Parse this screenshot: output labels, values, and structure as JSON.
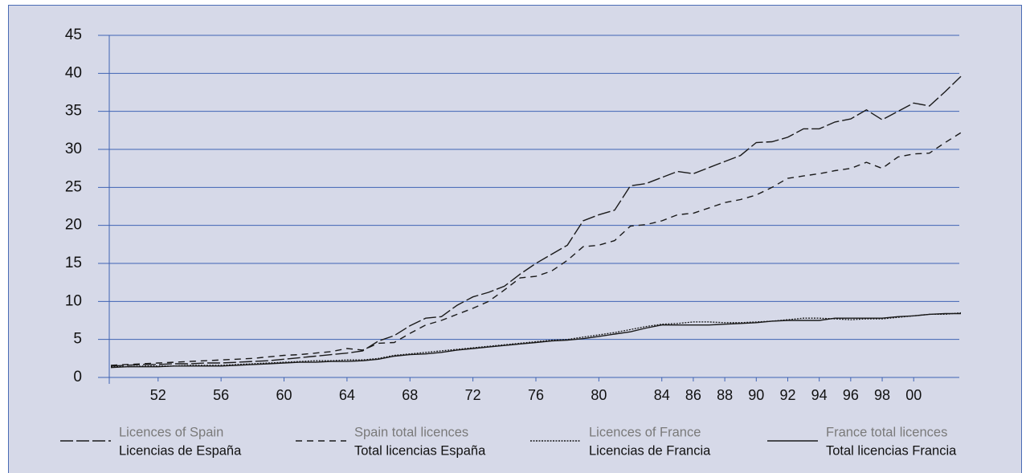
{
  "chart_data": {
    "type": "line",
    "x": [
      1949,
      1950,
      1951,
      1952,
      1953,
      1954,
      1955,
      1956,
      1957,
      1958,
      1959,
      1960,
      1961,
      1962,
      1963,
      1964,
      1965,
      1966,
      1967,
      1968,
      1969,
      1970,
      1971,
      1972,
      1973,
      1974,
      1975,
      1976,
      1977,
      1978,
      1979,
      1980,
      1981,
      1982,
      1983,
      1984,
      1985,
      1986,
      1987,
      1988,
      1989,
      1990,
      1991,
      1992,
      1993,
      1994,
      1995,
      1996,
      1997,
      1998,
      1999,
      2000,
      2001,
      2002,
      2003
    ],
    "xlim": [
      1949,
      2003
    ],
    "xticks": [
      {
        "value": 1952,
        "label": "52"
      },
      {
        "value": 1956,
        "label": "56"
      },
      {
        "value": 1960,
        "label": "60"
      },
      {
        "value": 1964,
        "label": "64"
      },
      {
        "value": 1968,
        "label": "68"
      },
      {
        "value": 1972,
        "label": "72"
      },
      {
        "value": 1976,
        "label": "76"
      },
      {
        "value": 1980,
        "label": "80"
      },
      {
        "value": 1984,
        "label": "84"
      },
      {
        "value": 1986,
        "label": "86"
      },
      {
        "value": 1988,
        "label": "88"
      },
      {
        "value": 1990,
        "label": "90"
      },
      {
        "value": 1992,
        "label": "92"
      },
      {
        "value": 1994,
        "label": "94"
      },
      {
        "value": 1996,
        "label": "96"
      },
      {
        "value": 1998,
        "label": "98"
      },
      {
        "value": 2000,
        "label": "00"
      }
    ],
    "ylim": [
      0,
      45
    ],
    "yticks": [
      0,
      5,
      10,
      15,
      20,
      25,
      30,
      35,
      40,
      45
    ],
    "grid": true,
    "series": [
      {
        "name": "Licences of Spain",
        "name_es": "Licencias de España",
        "color": "#1a1a1a",
        "dash": "long",
        "values": [
          1.5,
          1.6,
          1.7,
          1.7,
          1.8,
          1.8,
          1.9,
          1.9,
          2.0,
          2.1,
          2.2,
          2.4,
          2.6,
          2.8,
          3.0,
          3.2,
          3.5,
          4.8,
          5.5,
          6.8,
          7.8,
          8.0,
          9.5,
          10.6,
          11.2,
          12.0,
          13.6,
          15.0,
          16.2,
          17.4,
          20.6,
          21.4,
          22.0,
          25.2,
          25.5,
          26.3,
          27.1,
          26.8,
          27.6,
          28.4,
          29.2,
          30.9,
          31.0,
          31.6,
          32.7,
          32.7,
          33.6,
          34.0,
          35.2,
          33.9,
          35.0,
          36.1,
          35.7,
          37.6,
          39.6
        ]
      },
      {
        "name": "Spain total licences",
        "name_es": "Total licencias España",
        "color": "#1a1a1a",
        "dash": "short",
        "values": [
          1.6,
          1.7,
          1.8,
          1.9,
          2.0,
          2.1,
          2.2,
          2.3,
          2.4,
          2.5,
          2.7,
          2.9,
          3.0,
          3.2,
          3.4,
          3.8,
          3.6,
          4.5,
          4.6,
          5.8,
          6.9,
          7.5,
          8.3,
          9.1,
          10.0,
          11.5,
          13.1,
          13.3,
          14.0,
          15.4,
          17.2,
          17.4,
          18.0,
          19.9,
          20.1,
          20.6,
          21.4,
          21.6,
          22.3,
          23.0,
          23.4,
          24.0,
          25.0,
          26.2,
          26.5,
          26.8,
          27.2,
          27.5,
          28.3,
          27.5,
          29.0,
          29.4,
          29.5,
          30.9,
          32.2
        ]
      },
      {
        "name": "Licences of France",
        "name_es": "Licencias de Francia",
        "color": "#1a1a1a",
        "dash": "dotted",
        "values": [
          1.4,
          1.4,
          1.5,
          1.5,
          1.5,
          1.6,
          1.6,
          1.6,
          1.7,
          1.8,
          1.9,
          2.0,
          2.1,
          2.2,
          2.2,
          2.3,
          2.3,
          2.5,
          2.9,
          3.1,
          3.3,
          3.5,
          3.7,
          3.9,
          4.1,
          4.3,
          4.5,
          4.7,
          4.9,
          5.0,
          5.3,
          5.6,
          5.9,
          6.3,
          6.7,
          7.0,
          7.1,
          7.3,
          7.3,
          7.2,
          7.2,
          7.3,
          7.4,
          7.6,
          7.8,
          7.8,
          7.7,
          7.6,
          7.7,
          7.7,
          7.9,
          8.1,
          8.3,
          8.3,
          8.5
        ]
      },
      {
        "name": "France total licences",
        "name_es": "Total licencias Francia",
        "color": "#1a1a1a",
        "dash": "solid",
        "values": [
          1.3,
          1.4,
          1.4,
          1.4,
          1.5,
          1.5,
          1.5,
          1.5,
          1.6,
          1.7,
          1.8,
          1.9,
          2.0,
          2.0,
          2.1,
          2.1,
          2.2,
          2.4,
          2.8,
          3.0,
          3.1,
          3.3,
          3.6,
          3.8,
          4.0,
          4.2,
          4.4,
          4.6,
          4.8,
          4.9,
          5.1,
          5.4,
          5.7,
          6.0,
          6.5,
          6.9,
          6.9,
          6.9,
          6.9,
          7.0,
          7.1,
          7.2,
          7.4,
          7.5,
          7.5,
          7.5,
          7.8,
          7.8,
          7.8,
          7.8,
          8.0,
          8.1,
          8.3,
          8.4,
          8.4
        ]
      }
    ]
  }
}
